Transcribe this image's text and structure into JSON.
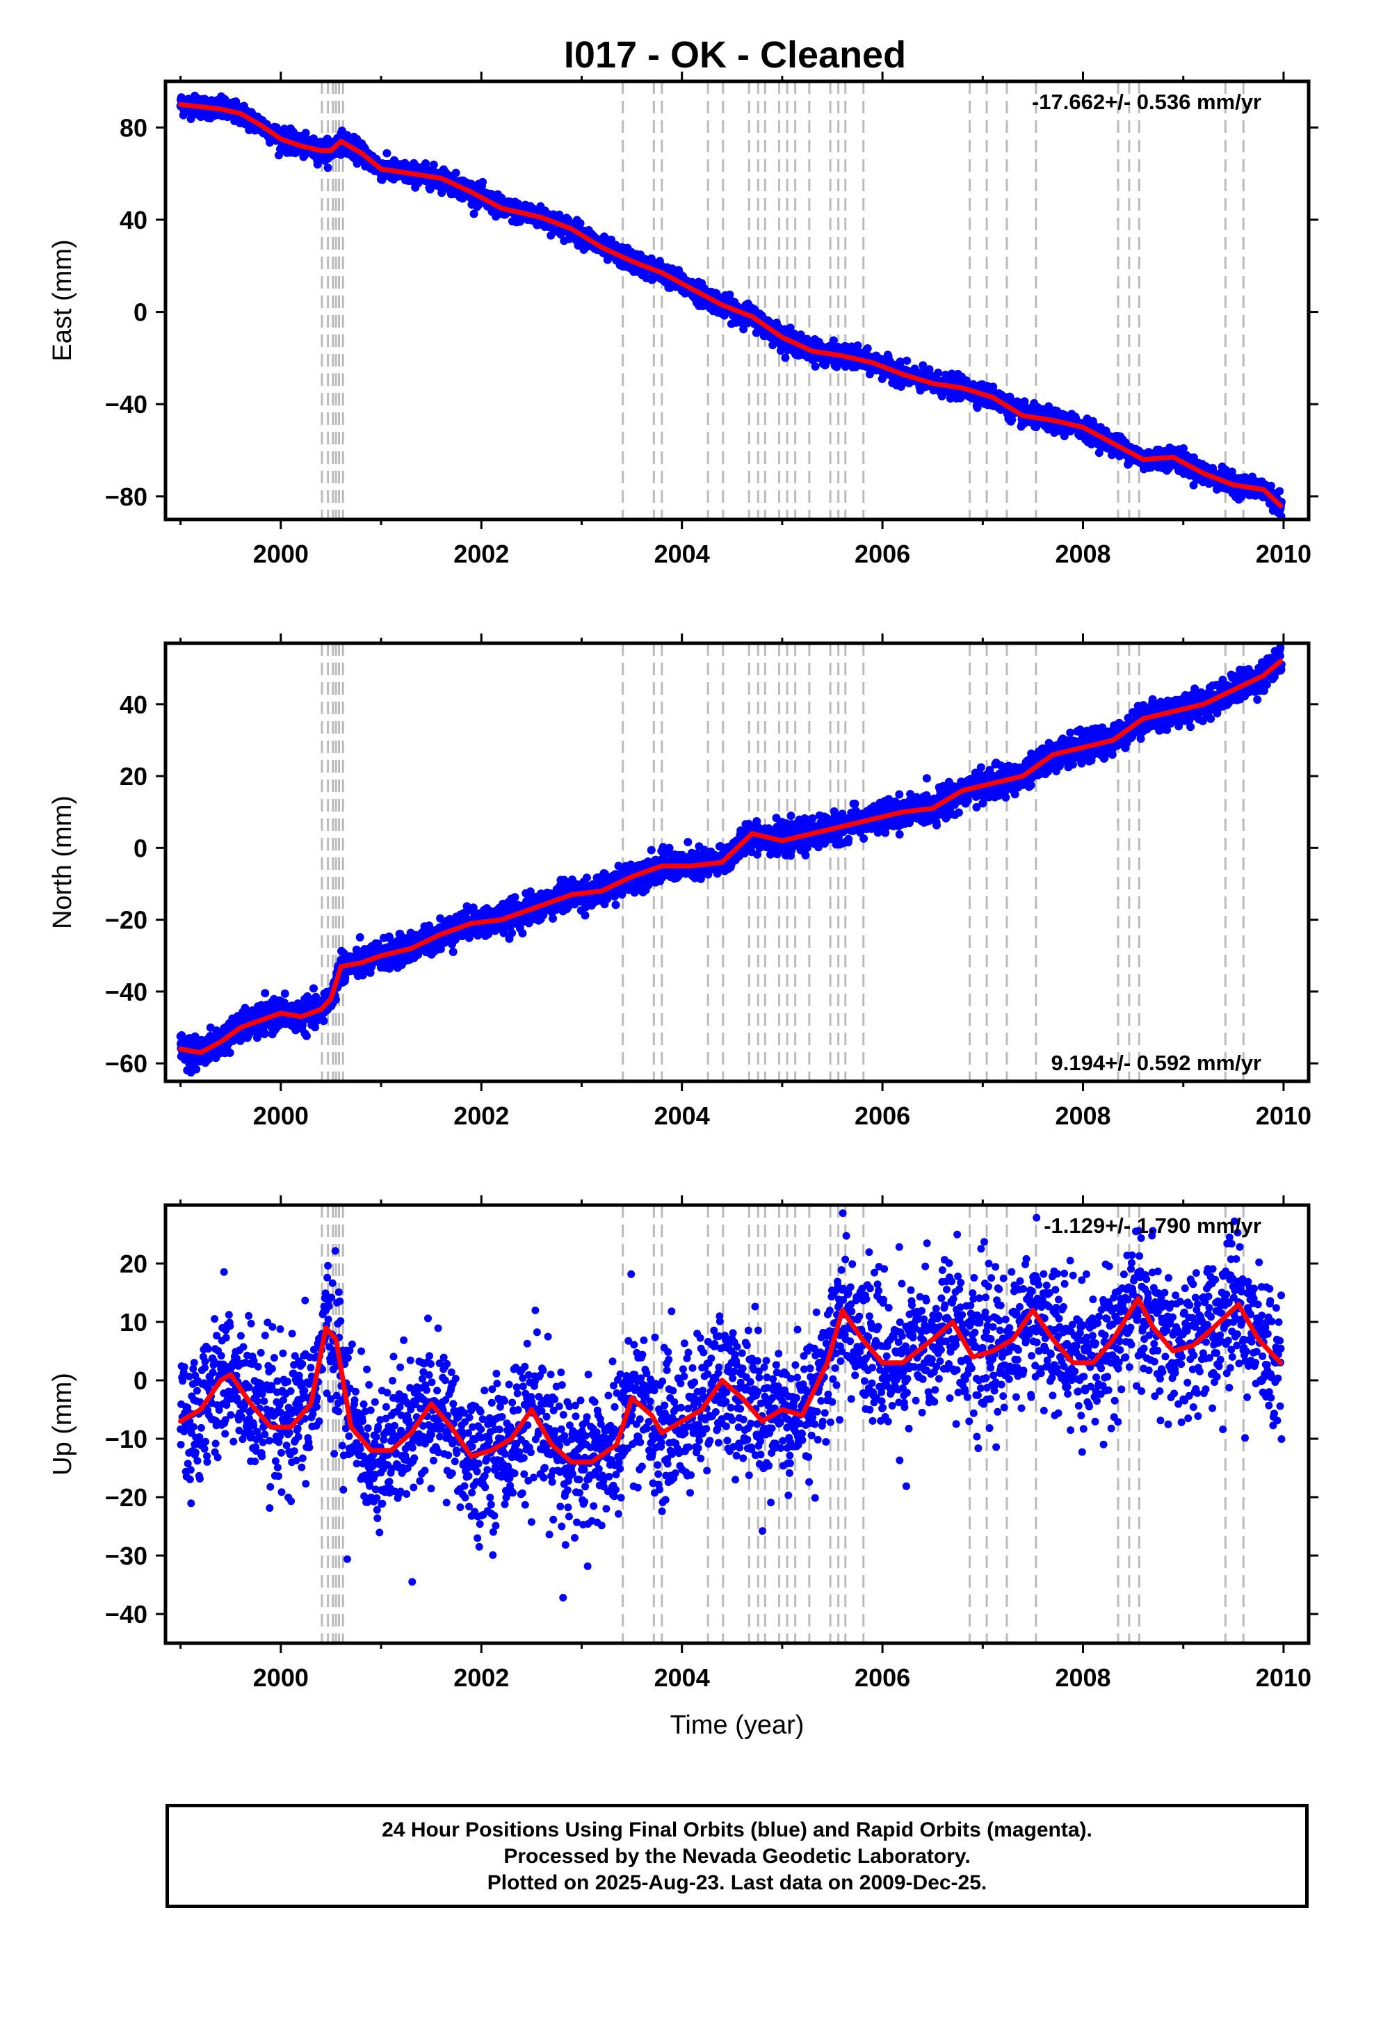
{
  "colors": {
    "data_points": "#0000ff",
    "model_line": "#ff0000",
    "event_lines": "#bbbbbb",
    "frame": "#000000"
  },
  "chart_data": [
    {
      "type": "scatter",
      "panel": "east",
      "title": "I017  - OK - Cleaned",
      "ylabel": "East (mm)",
      "xlabel": "",
      "xlim": [
        1998.85,
        2010.25
      ],
      "ylim": [
        -90,
        100
      ],
      "xticks": [
        2000,
        2002,
        2004,
        2006,
        2008,
        2010
      ],
      "yticks": [
        -80,
        -40,
        0,
        40,
        80
      ],
      "rate_text": "-17.662+/- 0.536 mm/yr",
      "rate_position": "top-right",
      "grid": false,
      "series": [
        {
          "role": "daily positions (blue dots)",
          "scatter_mm": 2.2,
          "x": [
            1999.0,
            1999.2,
            1999.4,
            1999.6,
            1999.8,
            2000.0,
            2000.2,
            2000.4,
            2000.5,
            2000.6,
            2000.8,
            2001.0,
            2001.3,
            2001.6,
            2001.9,
            2002.2,
            2002.6,
            2002.9,
            2003.2,
            2003.5,
            2003.8,
            2004.1,
            2004.4,
            2004.7,
            2005.0,
            2005.3,
            2005.6,
            2005.9,
            2006.2,
            2006.5,
            2006.8,
            2007.1,
            2007.4,
            2007.7,
            2008.0,
            2008.3,
            2008.6,
            2008.9,
            2009.2,
            2009.5,
            2009.8,
            2009.97
          ],
          "y": [
            90,
            89,
            88,
            86,
            81,
            75,
            72,
            70,
            70,
            74,
            69,
            62,
            60,
            58,
            52,
            45,
            41,
            36,
            28,
            22,
            17,
            10,
            3,
            -2,
            -11,
            -17,
            -19,
            -22,
            -27,
            -31,
            -33,
            -37,
            -45,
            -47,
            -50,
            -57,
            -64,
            -63,
            -70,
            -75,
            -77,
            -84
          ]
        },
        {
          "role": "model fit (red line)",
          "x": [
            1999.0,
            1999.2,
            1999.4,
            1999.6,
            1999.8,
            2000.0,
            2000.2,
            2000.4,
            2000.5,
            2000.6,
            2000.8,
            2001.0,
            2001.3,
            2001.6,
            2001.9,
            2002.2,
            2002.6,
            2002.9,
            2003.2,
            2003.5,
            2003.8,
            2004.1,
            2004.4,
            2004.7,
            2005.0,
            2005.3,
            2005.6,
            2005.9,
            2006.2,
            2006.5,
            2006.8,
            2007.1,
            2007.4,
            2007.7,
            2008.0,
            2008.3,
            2008.6,
            2008.9,
            2009.2,
            2009.5,
            2009.8,
            2009.97
          ],
          "y": [
            90,
            89,
            88,
            86,
            81,
            75,
            72,
            70,
            70,
            74,
            69,
            62,
            60,
            58,
            52,
            45,
            41,
            36,
            28,
            22,
            17,
            10,
            3,
            -2,
            -11,
            -17,
            -19,
            -22,
            -27,
            -31,
            -33,
            -37,
            -45,
            -47,
            -50,
            -57,
            -64,
            -63,
            -70,
            -75,
            -77,
            -84
          ]
        }
      ]
    },
    {
      "type": "scatter",
      "panel": "north",
      "title": "",
      "ylabel": "North (mm)",
      "xlabel": "",
      "xlim": [
        1998.85,
        2010.25
      ],
      "ylim": [
        -65,
        57
      ],
      "xticks": [
        2000,
        2002,
        2004,
        2006,
        2008,
        2010
      ],
      "yticks": [
        -60,
        -40,
        -20,
        0,
        20,
        40
      ],
      "rate_text": "9.194+/- 0.592 mm/yr",
      "rate_position": "bottom-right",
      "grid": false,
      "series": [
        {
          "role": "daily positions (blue dots)",
          "scatter_mm": 2.0,
          "x": [
            1999.0,
            1999.2,
            1999.4,
            1999.6,
            1999.8,
            2000.0,
            2000.2,
            2000.4,
            2000.5,
            2000.6,
            2000.8,
            2001.0,
            2001.3,
            2001.6,
            2001.9,
            2002.2,
            2002.6,
            2002.9,
            2003.2,
            2003.5,
            2003.8,
            2004.1,
            2004.4,
            2004.7,
            2005.0,
            2005.3,
            2005.6,
            2005.9,
            2006.2,
            2006.5,
            2006.8,
            2007.1,
            2007.4,
            2007.7,
            2008.0,
            2008.3,
            2008.6,
            2008.9,
            2009.2,
            2009.5,
            2009.8,
            2009.97
          ],
          "y": [
            -56,
            -57,
            -54,
            -50,
            -48,
            -46,
            -47,
            -45,
            -42,
            -33,
            -32,
            -30,
            -28,
            -24,
            -21,
            -20,
            -16,
            -13,
            -12,
            -8,
            -5,
            -5,
            -4,
            4,
            2,
            4,
            6,
            8,
            10,
            11,
            16,
            18,
            20,
            26,
            28,
            30,
            36,
            38,
            40,
            44,
            48,
            52
          ]
        },
        {
          "role": "model fit (red line)",
          "x": [
            1999.0,
            1999.2,
            1999.4,
            1999.6,
            1999.8,
            2000.0,
            2000.2,
            2000.4,
            2000.5,
            2000.6,
            2000.8,
            2001.0,
            2001.3,
            2001.6,
            2001.9,
            2002.2,
            2002.6,
            2002.9,
            2003.2,
            2003.5,
            2003.8,
            2004.1,
            2004.4,
            2004.7,
            2005.0,
            2005.3,
            2005.6,
            2005.9,
            2006.2,
            2006.5,
            2006.8,
            2007.1,
            2007.4,
            2007.7,
            2008.0,
            2008.3,
            2008.6,
            2008.9,
            2009.2,
            2009.5,
            2009.8,
            2009.97
          ],
          "y": [
            -56,
            -57,
            -54,
            -50,
            -48,
            -46,
            -47,
            -45,
            -42,
            -33,
            -32,
            -30,
            -28,
            -24,
            -21,
            -20,
            -16,
            -13,
            -12,
            -8,
            -5,
            -5,
            -4,
            4,
            2,
            4,
            6,
            8,
            10,
            11,
            16,
            18,
            20,
            26,
            28,
            30,
            36,
            38,
            40,
            44,
            48,
            52
          ]
        }
      ]
    },
    {
      "type": "scatter",
      "panel": "up",
      "title": "",
      "ylabel": "Up (mm)",
      "xlabel": "Time (year)",
      "xlim": [
        1998.85,
        2010.25
      ],
      "ylim": [
        -45,
        30
      ],
      "xticks": [
        2000,
        2002,
        2004,
        2006,
        2008,
        2010
      ],
      "yticks": [
        -40,
        -30,
        -20,
        -10,
        0,
        10,
        20
      ],
      "rate_text": "-1.129+/- 1.790 mm/yr",
      "rate_position": "top-right",
      "grid": false,
      "series": [
        {
          "role": "daily positions (blue dots)",
          "scatter_mm": 6.0,
          "x": [
            1999.0,
            1999.2,
            1999.4,
            1999.5,
            1999.7,
            1999.9,
            2000.1,
            2000.3,
            2000.45,
            2000.55,
            2000.7,
            2000.9,
            2001.1,
            2001.3,
            2001.5,
            2001.7,
            2001.9,
            2002.1,
            2002.3,
            2002.5,
            2002.7,
            2002.9,
            2003.1,
            2003.35,
            2003.5,
            2003.7,
            2003.8,
            2004.0,
            2004.2,
            2004.4,
            2004.6,
            2004.8,
            2005.0,
            2005.2,
            2005.45,
            2005.6,
            2005.8,
            2006.0,
            2006.2,
            2006.5,
            2006.7,
            2006.9,
            2007.1,
            2007.3,
            2007.5,
            2007.7,
            2007.9,
            2008.1,
            2008.3,
            2008.55,
            2008.7,
            2008.9,
            2009.1,
            2009.3,
            2009.55,
            2009.75,
            2009.97
          ],
          "y": [
            -7,
            -5,
            0,
            1,
            -4,
            -8,
            -8,
            -4,
            9,
            7,
            -8,
            -12,
            -12,
            -9,
            -4,
            -8,
            -13,
            -12,
            -10,
            -5,
            -11,
            -14,
            -14,
            -11,
            -3,
            -6,
            -9,
            -7,
            -5,
            0,
            -3,
            -7,
            -5,
            -6,
            3,
            12,
            7,
            3,
            3,
            7,
            10,
            4,
            5,
            7,
            12,
            7,
            3,
            3,
            7,
            14,
            9,
            5,
            6,
            9,
            13,
            7,
            3
          ]
        },
        {
          "role": "model fit (red line)",
          "x": [
            1999.0,
            1999.2,
            1999.4,
            1999.5,
            1999.7,
            1999.9,
            2000.1,
            2000.3,
            2000.45,
            2000.55,
            2000.7,
            2000.9,
            2001.1,
            2001.3,
            2001.5,
            2001.7,
            2001.9,
            2002.1,
            2002.3,
            2002.5,
            2002.7,
            2002.9,
            2003.1,
            2003.35,
            2003.5,
            2003.7,
            2003.8,
            2004.0,
            2004.2,
            2004.4,
            2004.6,
            2004.8,
            2005.0,
            2005.2,
            2005.45,
            2005.6,
            2005.8,
            2006.0,
            2006.2,
            2006.5,
            2006.7,
            2006.9,
            2007.1,
            2007.3,
            2007.5,
            2007.7,
            2007.9,
            2008.1,
            2008.3,
            2008.55,
            2008.7,
            2008.9,
            2009.1,
            2009.3,
            2009.55,
            2009.75,
            2009.97
          ],
          "y": [
            -7,
            -5,
            0,
            1,
            -4,
            -8,
            -8,
            -4,
            9,
            7,
            -8,
            -12,
            -12,
            -9,
            -4,
            -8,
            -13,
            -12,
            -10,
            -5,
            -11,
            -14,
            -14,
            -11,
            -3,
            -6,
            -9,
            -7,
            -5,
            0,
            -3,
            -7,
            -5,
            -6,
            3,
            12,
            7,
            3,
            3,
            7,
            10,
            4,
            5,
            7,
            12,
            7,
            3,
            3,
            7,
            14,
            9,
            5,
            6,
            9,
            13,
            7,
            3
          ]
        }
      ]
    }
  ],
  "event_lines_years": [
    2000.41,
    2000.47,
    2000.52,
    2000.55,
    2000.58,
    2000.62,
    2003.41,
    2003.72,
    2003.8,
    2004.26,
    2004.41,
    2004.67,
    2004.76,
    2004.83,
    2004.97,
    2005.05,
    2005.13,
    2005.27,
    2005.48,
    2005.56,
    2005.63,
    2005.81,
    2006.87,
    2007.04,
    2007.24,
    2007.53,
    2008.35,
    2008.46,
    2008.56,
    2009.42,
    2009.6
  ],
  "footer": {
    "line1": "24 Hour Positions Using Final Orbits (blue) and Rapid Orbits (magenta).",
    "line2": "Processed by the Nevada Geodetic Laboratory.",
    "line3": "Plotted on 2025-Aug-23. Last data on 2009-Dec-25."
  }
}
